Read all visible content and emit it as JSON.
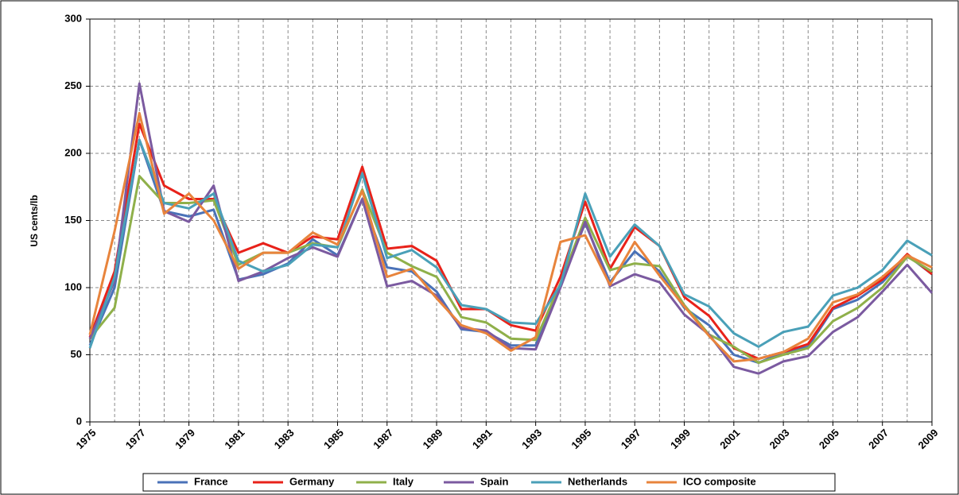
{
  "chart_data": {
    "type": "line",
    "y_label": "US cents/lb",
    "x": [
      1975,
      1976,
      1977,
      1978,
      1979,
      1980,
      1981,
      1982,
      1983,
      1984,
      1985,
      1986,
      1987,
      1988,
      1989,
      1990,
      1991,
      1992,
      1993,
      1994,
      1995,
      1996,
      1997,
      1998,
      1999,
      2000,
      2001,
      2002,
      2003,
      2004,
      2005,
      2006,
      2007,
      2008,
      2009
    ],
    "xlim": [
      1975,
      2009
    ],
    "xticks": [
      1975,
      1977,
      1979,
      1981,
      1983,
      1985,
      1987,
      1989,
      1991,
      1993,
      1995,
      1997,
      1999,
      2001,
      2003,
      2005,
      2007,
      2009
    ],
    "ylim": [
      0,
      300
    ],
    "yticks": [
      0,
      50,
      100,
      150,
      200,
      250,
      300
    ],
    "grid": true,
    "legend": "bottom",
    "series": [
      {
        "name": "France",
        "color": "#4a72b8",
        "values": [
          57,
          100,
          210,
          157,
          153,
          158,
          106,
          110,
          118,
          136,
          124,
          166,
          115,
          112,
          97,
          69,
          67,
          57,
          57,
          103,
          148,
          104,
          127,
          112,
          85,
          72,
          50,
          44,
          52,
          56,
          84,
          91,
          104,
          124,
          110
        ]
      },
      {
        "name": "Germany",
        "color": "#e8221a",
        "values": [
          63,
          112,
          222,
          176,
          166,
          166,
          126,
          133,
          126,
          138,
          136,
          190,
          129,
          131,
          120,
          84,
          84,
          72,
          68,
          108,
          164,
          114,
          145,
          131,
          93,
          79,
          55,
          47,
          52,
          58,
          85,
          94,
          106,
          125,
          110
        ]
      },
      {
        "name": "Italy",
        "color": "#8fb04a",
        "values": [
          62,
          85,
          183,
          163,
          163,
          165,
          117,
          126,
          126,
          133,
          130,
          173,
          126,
          116,
          108,
          78,
          74,
          62,
          61,
          103,
          152,
          113,
          118,
          116,
          87,
          65,
          56,
          44,
          50,
          55,
          75,
          85,
          100,
          123,
          112
        ]
      },
      {
        "name": "Spain",
        "color": "#7b5aa0",
        "values": [
          62,
          105,
          252,
          157,
          149,
          176,
          105,
          112,
          122,
          130,
          123,
          166,
          101,
          105,
          94,
          70,
          68,
          55,
          54,
          100,
          149,
          101,
          110,
          104,
          80,
          65,
          41,
          36,
          45,
          49,
          67,
          78,
          97,
          117,
          96
        ]
      },
      {
        "name": "Netherlands",
        "color": "#4aa0b8",
        "values": [
          55,
          108,
          210,
          163,
          159,
          170,
          120,
          112,
          117,
          132,
          130,
          185,
          122,
          128,
          115,
          87,
          84,
          74,
          73,
          102,
          170,
          123,
          147,
          131,
          95,
          86,
          66,
          56,
          67,
          71,
          94,
          100,
          113,
          135,
          124
        ]
      },
      {
        "name": "ICO composite",
        "color": "#e8843c",
        "values": [
          65,
          142,
          230,
          155,
          170,
          150,
          114,
          126,
          126,
          141,
          132,
          172,
          108,
          114,
          92,
          72,
          66,
          53,
          63,
          134,
          139,
          102,
          134,
          109,
          86,
          64,
          45,
          47,
          52,
          62,
          89,
          95,
          108,
          124,
          115
        ]
      }
    ]
  }
}
